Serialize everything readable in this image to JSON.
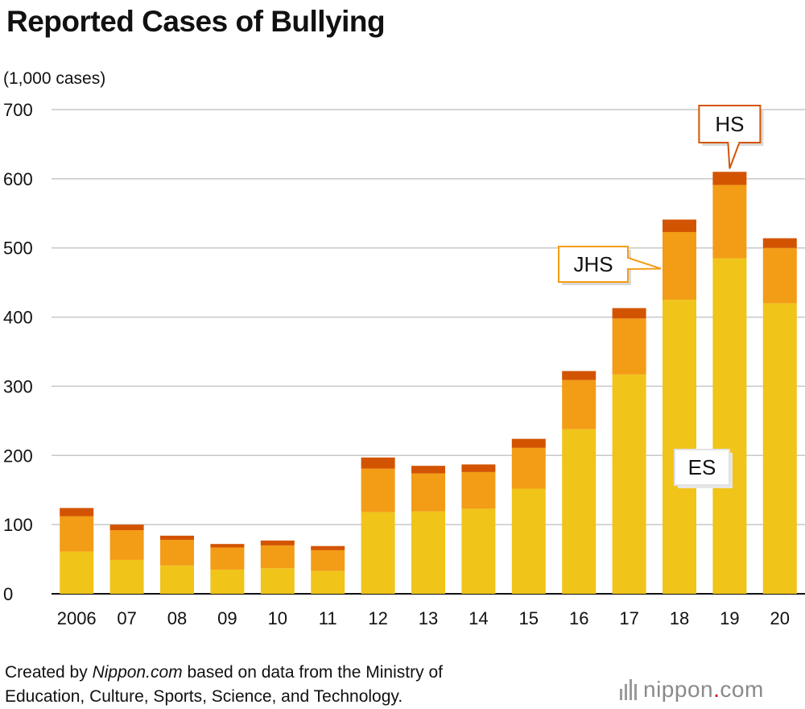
{
  "footer": {
    "prefix": "Created by ",
    "brand": "Nippon.com",
    "suffix": " based on data from the Ministry of",
    "line2": "Education, Culture, Sports, Science, and Technology."
  },
  "logo": {
    "name": "nippon",
    "dot": ".",
    "tld": "com"
  },
  "chart_data": {
    "type": "bar",
    "stacked": true,
    "title": "Reported Cases of Bullying",
    "ylabel": "(1,000 cases)",
    "xlabel": "",
    "ylim": [
      0,
      700
    ],
    "yticks": [
      0,
      100,
      200,
      300,
      400,
      500,
      600,
      700
    ],
    "grid": true,
    "categories": [
      "2006",
      "07",
      "08",
      "09",
      "10",
      "11",
      "12",
      "13",
      "14",
      "15",
      "16",
      "17",
      "18",
      "19",
      "20"
    ],
    "series": [
      {
        "name": "ES",
        "color": "#f0c419",
        "values": [
          61,
          49,
          41,
          35,
          37,
          33,
          118,
          119,
          123,
          152,
          238,
          317,
          425,
          485,
          420
        ]
      },
      {
        "name": "JHS",
        "color": "#f39c16",
        "values": [
          51,
          43,
          37,
          32,
          33,
          30,
          63,
          55,
          53,
          59,
          71,
          81,
          98,
          106,
          80
        ]
      },
      {
        "name": "HS",
        "color": "#d35400",
        "values": [
          12,
          8,
          6,
          5,
          7,
          6,
          16,
          11,
          11,
          13,
          13,
          15,
          18,
          19,
          14
        ]
      }
    ],
    "annotations": [
      {
        "text": "HS",
        "series": "HS",
        "category": "19"
      },
      {
        "text": "JHS",
        "series": "JHS",
        "category": "18"
      },
      {
        "text": "ES",
        "series": "ES",
        "category": "19"
      }
    ]
  }
}
